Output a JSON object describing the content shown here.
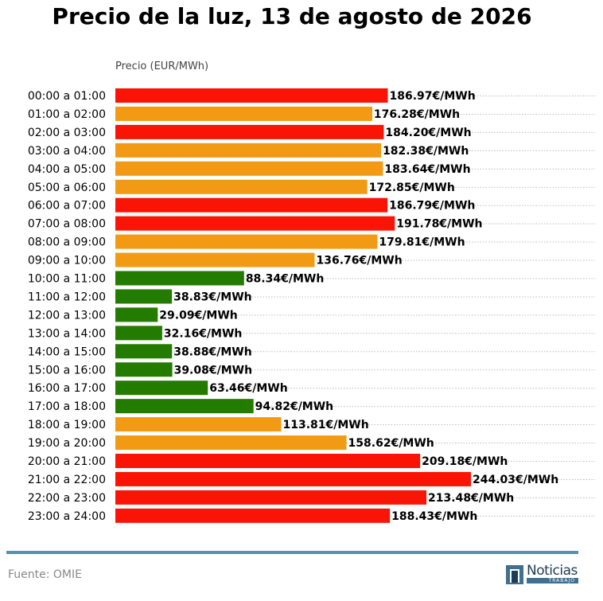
{
  "chart_data": {
    "type": "bar",
    "orientation": "horizontal",
    "title": "Precio de la luz, 13 de agosto de 2026",
    "xlabel": "Precio (EUR/MWh)",
    "unit_suffix": "€/MWh",
    "xlim": [
      0,
      265
    ],
    "grid": "dotted horizontal",
    "categories": [
      "00:00 a 01:00",
      "01:00 a 02:00",
      "02:00 a 03:00",
      "03:00 a 04:00",
      "04:00 a 05:00",
      "05:00 a 06:00",
      "06:00 a 07:00",
      "07:00 a 08:00",
      "08:00 a 09:00",
      "09:00 a 10:00",
      "10:00 a 11:00",
      "11:00 a 12:00",
      "12:00 a 13:00",
      "13:00 a 14:00",
      "14:00 a 15:00",
      "15:00 a 16:00",
      "16:00 a 17:00",
      "17:00 a 18:00",
      "18:00 a 19:00",
      "19:00 a 20:00",
      "20:00 a 21:00",
      "21:00 a 22:00",
      "22:00 a 23:00",
      "23:00 a 24:00"
    ],
    "values": [
      186.97,
      176.28,
      184.2,
      182.38,
      183.64,
      172.85,
      186.79,
      191.78,
      179.81,
      136.76,
      88.34,
      38.83,
      29.09,
      32.16,
      38.88,
      39.08,
      63.46,
      94.82,
      113.81,
      158.62,
      209.18,
      244.03,
      213.48,
      188.43
    ],
    "data_labels": [
      "186.97€/MWh",
      "176.28€/MWh",
      "184.20€/MWh",
      "182.38€/MWh",
      "183.64€/MWh",
      "172.85€/MWh",
      "186.79€/MWh",
      "191.78€/MWh",
      "179.81€/MWh",
      "136.76€/MWh",
      "88.34€/MWh",
      "38.83€/MWh",
      "29.09€/MWh",
      "32.16€/MWh",
      "38.88€/MWh",
      "39.08€/MWh",
      "63.46€/MWh",
      "94.82€/MWh",
      "113.81€/MWh",
      "158.62€/MWh",
      "209.18€/MWh",
      "244.03€/MWh",
      "213.48€/MWh",
      "188.43€/MWh"
    ],
    "levels": [
      "high",
      "mid",
      "high",
      "mid",
      "mid",
      "mid",
      "high",
      "high",
      "mid",
      "mid",
      "low",
      "low",
      "low",
      "low",
      "low",
      "low",
      "low",
      "low",
      "mid",
      "mid",
      "high",
      "high",
      "high",
      "high"
    ],
    "colors": {
      "high": "#f91405",
      "mid": "#f29a14",
      "low": "#237b00",
      "grid": "#bbbbbb",
      "xlabel": "#444444"
    }
  },
  "footer": {
    "source": "Fuente: OMIE",
    "logo_text": "Noticias",
    "logo_sub": "TRABAJO",
    "line_color": "#5b8fa8"
  }
}
